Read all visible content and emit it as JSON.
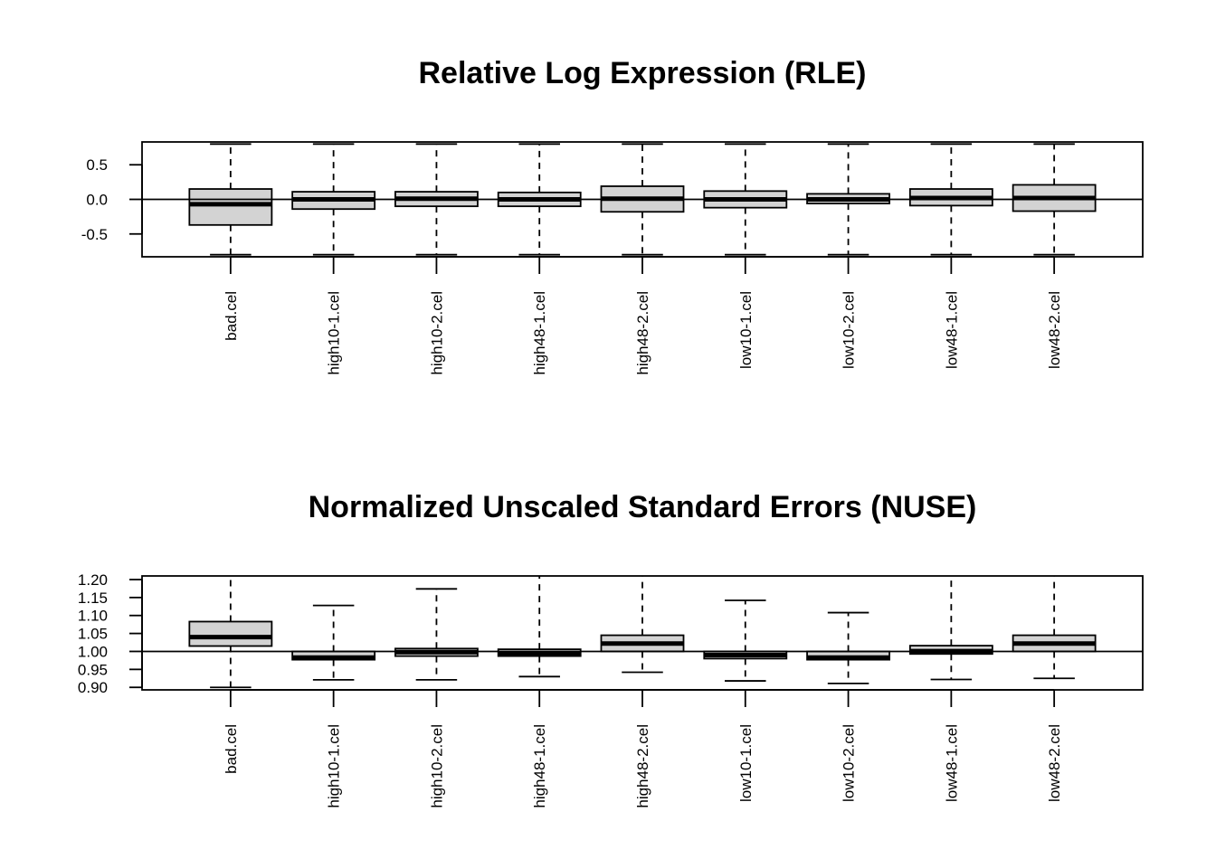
{
  "chart_data": [
    {
      "type": "boxplot",
      "title": "Relative Log Expression (RLE)",
      "categories": [
        "bad.cel",
        "high10-1.cel",
        "high10-2.cel",
        "high48-1.cel",
        "high48-2.cel",
        "low10-1.cel",
        "low10-2.cel",
        "low48-1.cel",
        "low48-2.cel"
      ],
      "boxes": [
        {
          "q1": -0.37,
          "median": -0.07,
          "q3": 0.15,
          "whisker_low": -0.8,
          "whisker_high": 0.8
        },
        {
          "q1": -0.14,
          "median": 0.0,
          "q3": 0.11,
          "whisker_low": -0.8,
          "whisker_high": 0.8
        },
        {
          "q1": -0.1,
          "median": 0.01,
          "q3": 0.11,
          "whisker_low": -0.8,
          "whisker_high": 0.8
        },
        {
          "q1": -0.1,
          "median": 0.0,
          "q3": 0.1,
          "whisker_low": -0.8,
          "whisker_high": 0.8
        },
        {
          "q1": -0.18,
          "median": 0.01,
          "q3": 0.19,
          "whisker_low": -0.8,
          "whisker_high": 0.8
        },
        {
          "q1": -0.12,
          "median": 0.0,
          "q3": 0.12,
          "whisker_low": -0.8,
          "whisker_high": 0.8
        },
        {
          "q1": -0.06,
          "median": 0.0,
          "q3": 0.08,
          "whisker_low": -0.8,
          "whisker_high": 0.8
        },
        {
          "q1": -0.09,
          "median": 0.02,
          "q3": 0.15,
          "whisker_low": -0.8,
          "whisker_high": 0.8
        },
        {
          "q1": -0.17,
          "median": 0.02,
          "q3": 0.21,
          "whisker_low": -0.8,
          "whisker_high": 0.8
        }
      ],
      "reference_line": 0.0,
      "ylim": [
        -0.83,
        0.83
      ],
      "yticks": [
        -0.5,
        0.0,
        0.5
      ],
      "ytick_labels": [
        "-0.5",
        "0.0",
        "0.5"
      ],
      "box_fill": "#d3d3d3",
      "grid": false
    },
    {
      "type": "boxplot",
      "title": "Normalized Unscaled Standard Errors (NUSE)",
      "categories": [
        "bad.cel",
        "high10-1.cel",
        "high10-2.cel",
        "high48-1.cel",
        "high48-2.cel",
        "low10-1.cel",
        "low10-2.cel",
        "low48-1.cel",
        "low48-2.cel"
      ],
      "boxes": [
        {
          "q1": 1.015,
          "median": 1.04,
          "q3": 1.083,
          "whisker_low": 0.9,
          "whisker_high": 1.21
        },
        {
          "q1": 0.977,
          "median": 0.983,
          "q3": 1.0,
          "whisker_low": 0.921,
          "whisker_high": 1.128
        },
        {
          "q1": 0.987,
          "median": 0.998,
          "q3": 1.008,
          "whisker_low": 0.921,
          "whisker_high": 1.174
        },
        {
          "q1": 0.987,
          "median": 0.995,
          "q3": 1.006,
          "whisker_low": 0.93,
          "whisker_high": 1.21
        },
        {
          "q1": 1.0,
          "median": 1.022,
          "q3": 1.045,
          "whisker_low": 0.942,
          "whisker_high": 1.21
        },
        {
          "q1": 0.98,
          "median": 0.99,
          "q3": 1.0,
          "whisker_low": 0.918,
          "whisker_high": 1.142
        },
        {
          "q1": 0.977,
          "median": 0.983,
          "q3": 1.0,
          "whisker_low": 0.911,
          "whisker_high": 1.108
        },
        {
          "q1": 0.993,
          "median": 1.001,
          "q3": 1.016,
          "whisker_low": 0.922,
          "whisker_high": 1.21
        },
        {
          "q1": 1.0,
          "median": 1.022,
          "q3": 1.045,
          "whisker_low": 0.925,
          "whisker_high": 1.21
        }
      ],
      "reference_line": 1.0,
      "ylim": [
        0.893,
        1.21
      ],
      "yticks": [
        0.9,
        0.95,
        1.0,
        1.05,
        1.1,
        1.15,
        1.2
      ],
      "ytick_labels": [
        "0.90",
        "0.95",
        "1.00",
        "1.05",
        "1.10",
        "1.15",
        "1.20"
      ],
      "box_fill": "#d3d3d3",
      "grid": false
    }
  ]
}
